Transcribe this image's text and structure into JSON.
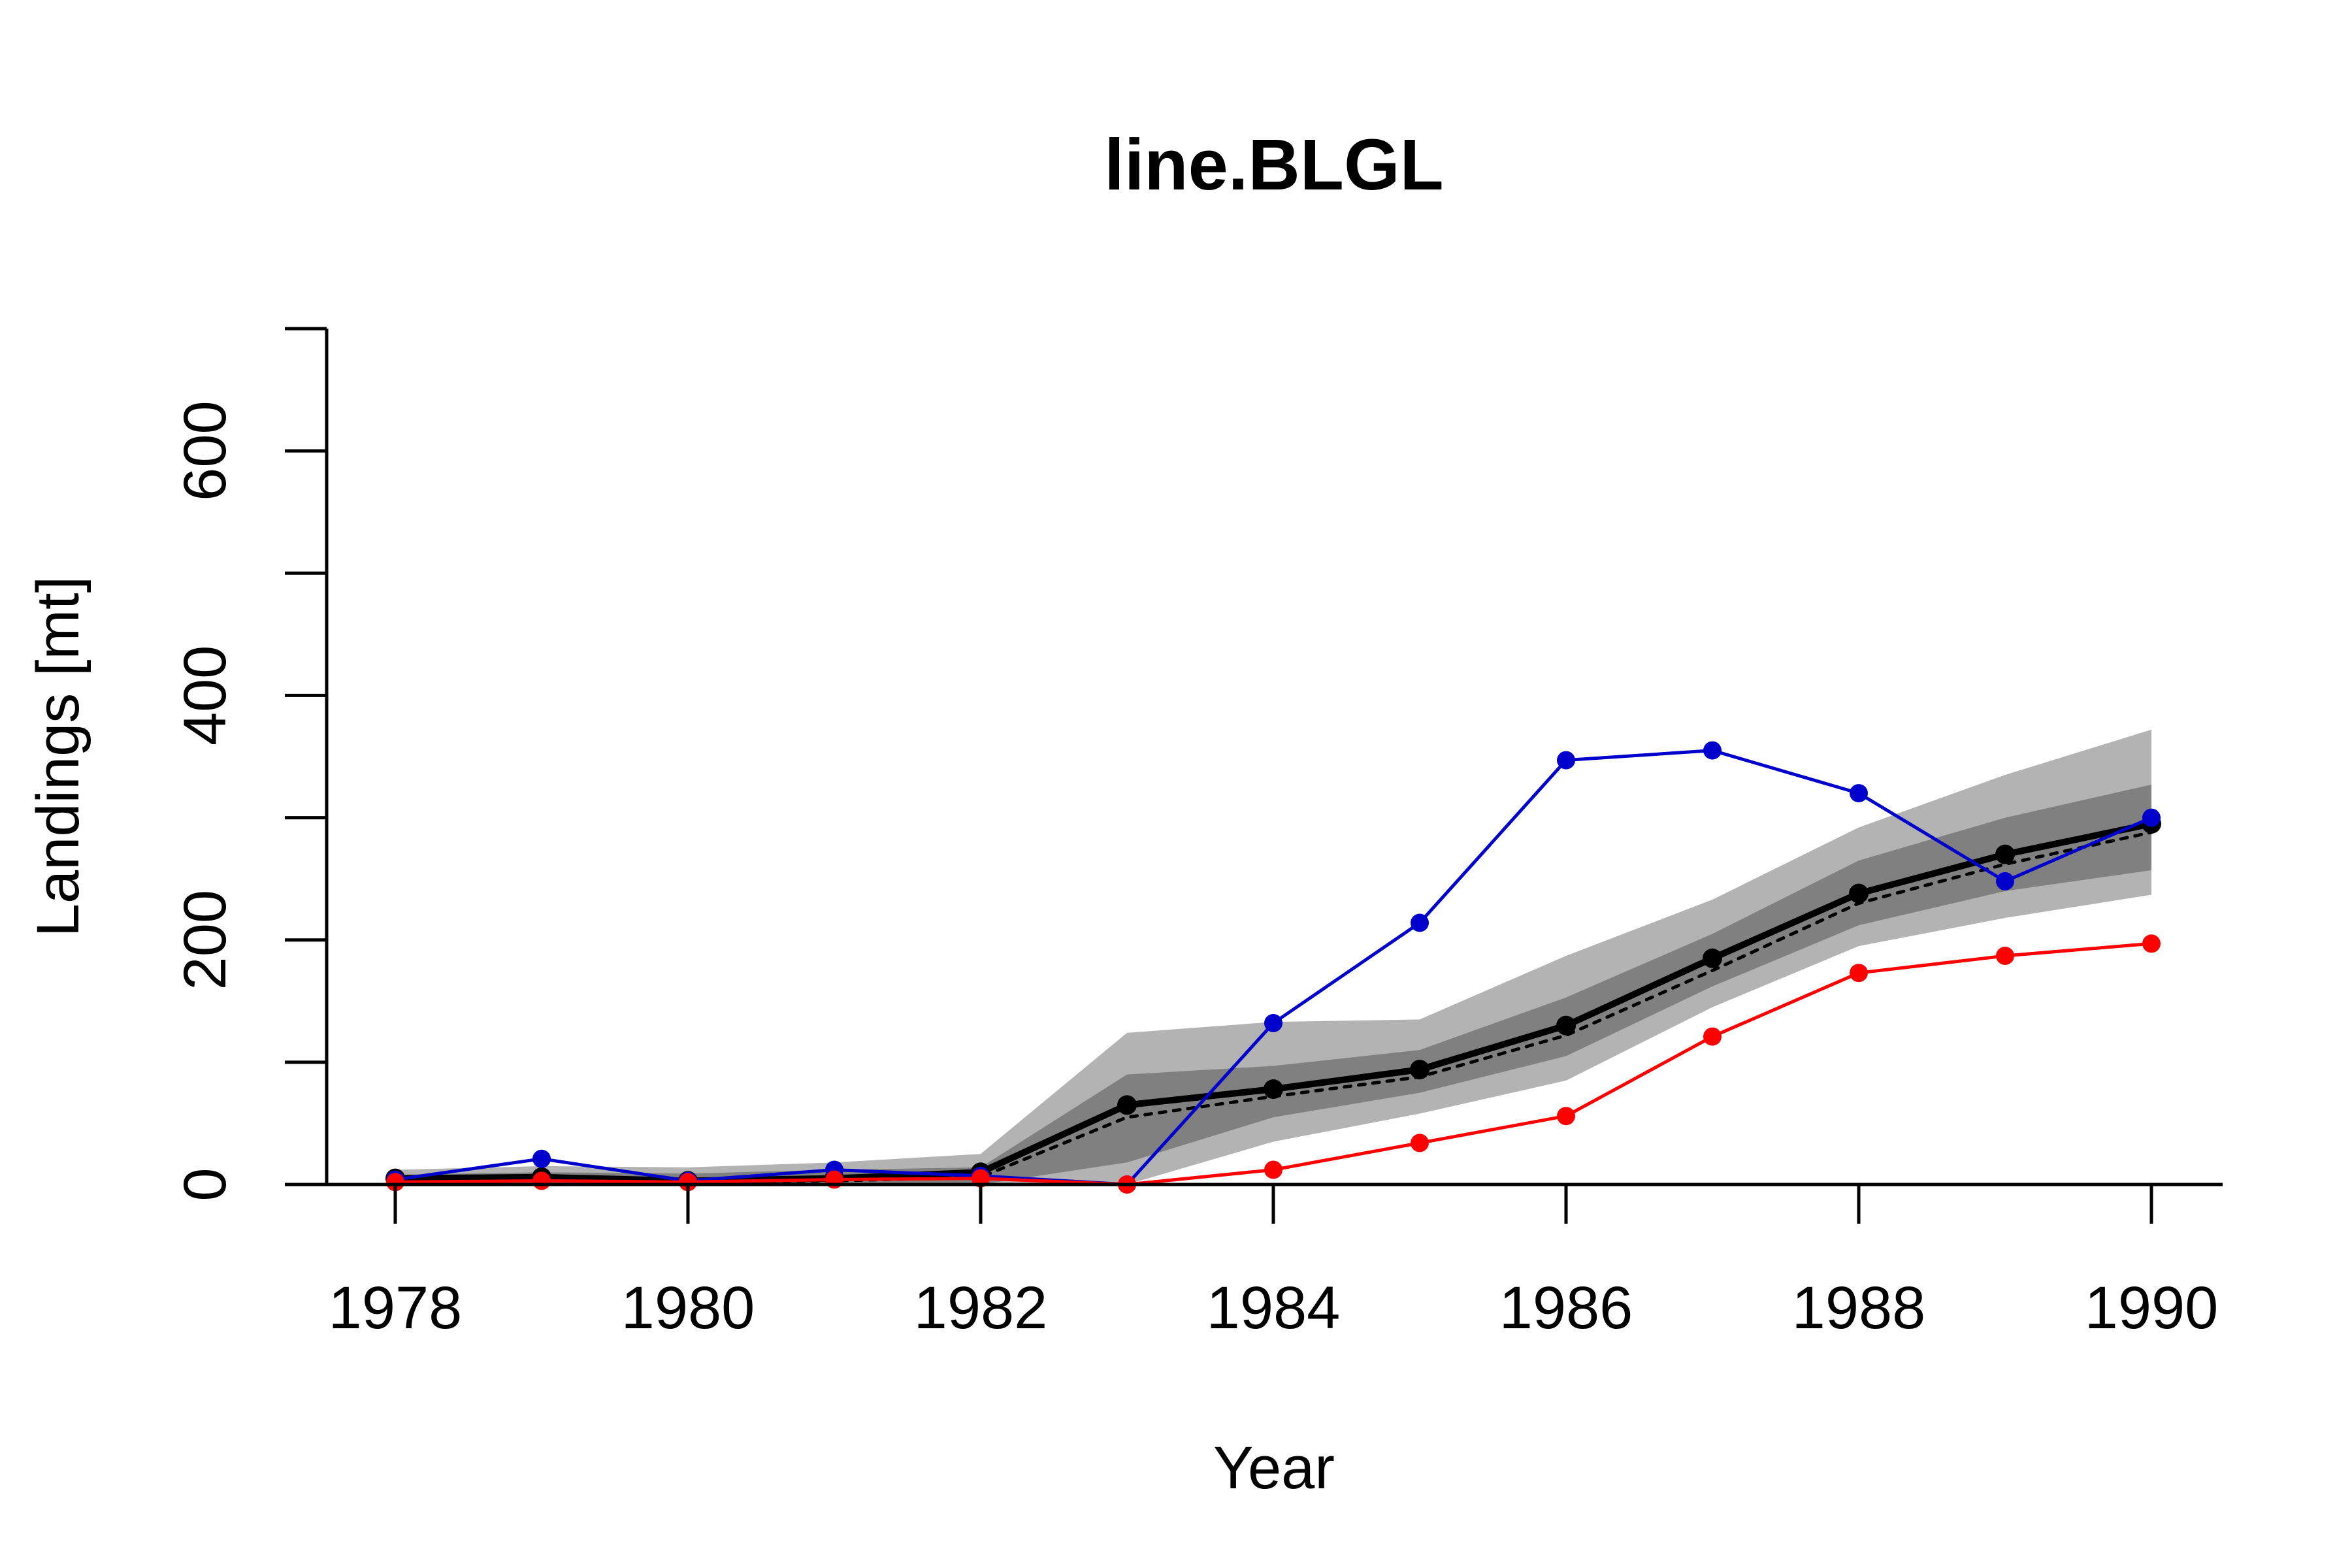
{
  "chart_data": {
    "type": "line",
    "title": "line.BLGL",
    "xlabel": "Year",
    "ylabel": "Landings [mt]",
    "xlim": [
      1977.2,
      1990.5
    ],
    "ylim": [
      0,
      700
    ],
    "x_ticks": [
      1978,
      1980,
      1982,
      1984,
      1986,
      1988,
      1990
    ],
    "x_tick_labels": [
      "1978",
      "1980",
      "1982",
      "1984",
      "1986",
      "1988",
      "1990"
    ],
    "y_ticks": [
      0,
      100,
      200,
      300,
      400,
      500,
      600,
      700
    ],
    "y_tick_labels": [
      "0",
      "",
      "200",
      "",
      "400",
      "",
      "600",
      ""
    ],
    "grid": false,
    "legend": "none",
    "x": [
      1978,
      1979,
      1980,
      1981,
      1982,
      1983,
      1984,
      1985,
      1986,
      1987,
      1988,
      1989,
      1990
    ],
    "bands": [
      {
        "color": "#b3b3b3",
        "lower": [
          0,
          0,
          0,
          0,
          0,
          0,
          35,
          58,
          85,
          145,
          195,
          218,
          237
        ],
        "upper": [
          12,
          15,
          14,
          18,
          25,
          124,
          133,
          135,
          187,
          233,
          292,
          335,
          372
        ]
      },
      {
        "color": "#808080",
        "lower": [
          0,
          0,
          0,
          0,
          0,
          18,
          55,
          75,
          105,
          162,
          212,
          240,
          257
        ],
        "upper": [
          8,
          10,
          9,
          12,
          14,
          90,
          97,
          110,
          153,
          205,
          265,
          300,
          327
        ]
      }
    ],
    "series": [
      {
        "color": "#000000",
        "style": "thick-line-points",
        "values": [
          5,
          6,
          3,
          5,
          10,
          65,
          78,
          94,
          130,
          185,
          238,
          270,
          295
        ]
      },
      {
        "color": "#000000",
        "style": "dotted-line",
        "values": [
          3,
          4,
          2,
          3,
          6,
          55,
          72,
          88,
          122,
          175,
          230,
          262,
          288
        ]
      },
      {
        "color": "#0000cc",
        "style": "line-points",
        "values": [
          4,
          21,
          3,
          12,
          7,
          0,
          132,
          214,
          347,
          355,
          320,
          248,
          300
        ]
      },
      {
        "color": "#ff0000",
        "style": "line-points",
        "values": [
          2,
          3,
          2,
          4,
          5,
          0,
          12,
          34,
          56,
          121,
          173,
          187,
          197
        ]
      }
    ]
  }
}
